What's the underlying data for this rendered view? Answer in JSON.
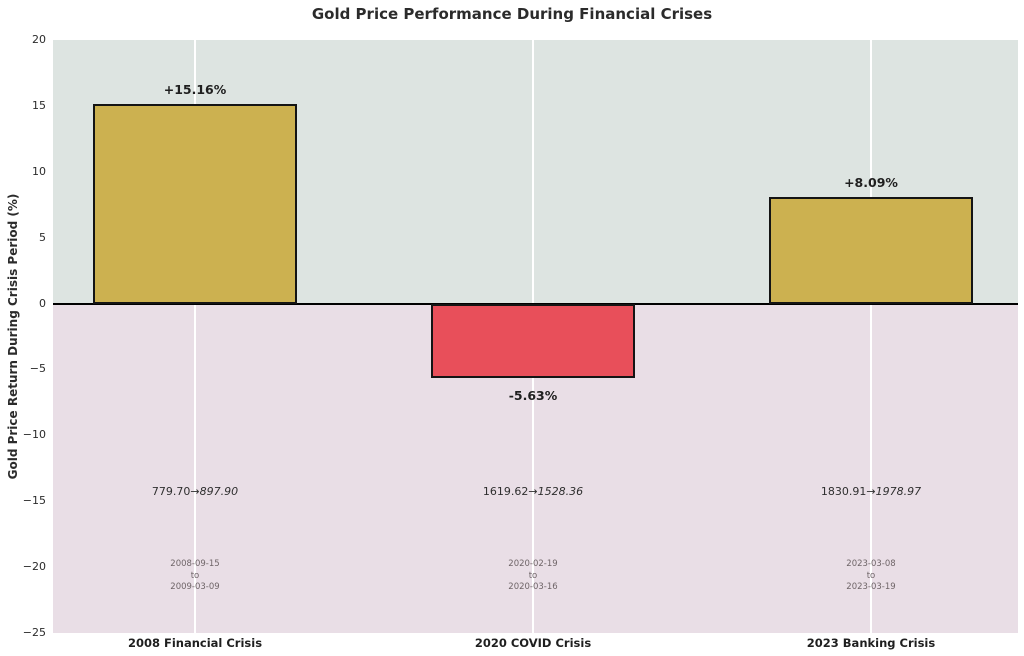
{
  "chart_data": {
    "type": "bar",
    "title": "Gold Price Performance During Financial Crises",
    "xlabel": "",
    "ylabel": "Gold Price Return During Crisis Period (%)",
    "categories": [
      "2008 Financial Crisis",
      "2020 COVID Crisis",
      "2023 Banking Crisis"
    ],
    "values": [
      15.16,
      -5.63,
      8.09
    ],
    "value_labels": [
      "+15.16%",
      "-5.63%",
      "+8.09%"
    ],
    "price_annotations": [
      {
        "start": "779.70",
        "arrow": "→",
        "end": "897.90"
      },
      {
        "start": "1619.62",
        "arrow": "→",
        "end": "1528.36"
      },
      {
        "start": "1830.91",
        "arrow": "→",
        "end": "1978.97"
      }
    ],
    "date_annotations": [
      {
        "from": "2008-09-15",
        "separator": "to",
        "to": "2009-03-09"
      },
      {
        "from": "2020-02-19",
        "separator": "to",
        "to": "2020-03-16"
      },
      {
        "from": "2023-03-08",
        "separator": "to",
        "to": "2023-03-19"
      }
    ],
    "ylim": [
      -25,
      20
    ],
    "yticks": [
      20,
      15,
      10,
      5,
      0,
      -5,
      -10,
      -15,
      -20,
      -25
    ],
    "grid": "vertical-white-only",
    "legend": "none",
    "colors": {
      "positive_bar": "#ccb150",
      "negative_bar": "#e84f5a",
      "bar_border": "#141414",
      "positive_region_bg": "#dde4e1",
      "negative_region_bg": "#e9dee6",
      "zero_line": "#000000",
      "grid": "#ffffff",
      "title_text": "#2b2b2b",
      "date_text": "#6f6568"
    }
  }
}
